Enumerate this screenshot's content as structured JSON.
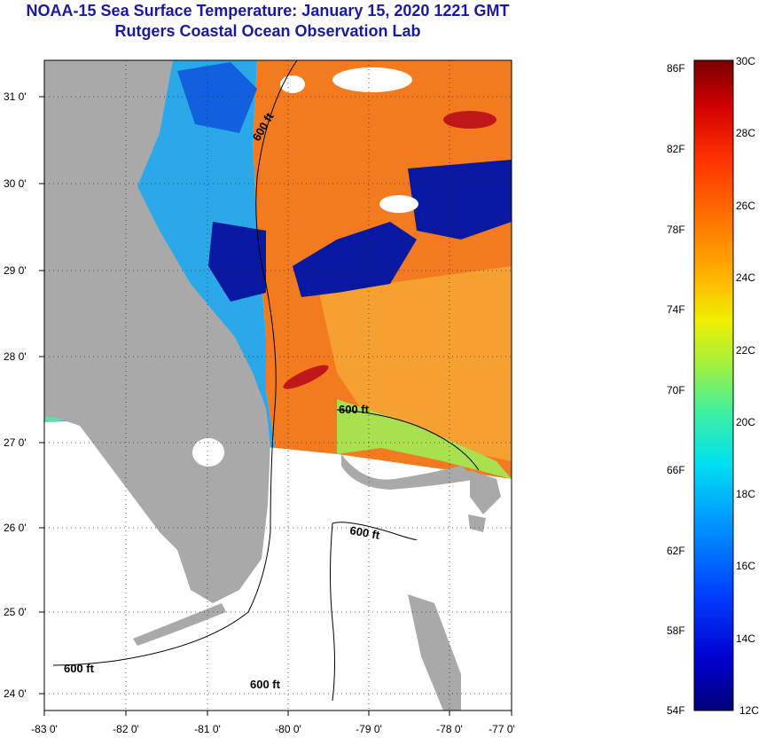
{
  "title": {
    "line1": "NOAA-15 Sea Surface Temperature:  January 15, 2020 1221 GMT",
    "line2": "Rutgers Coastal Ocean Observation Lab"
  },
  "axes": {
    "lat_labels": [
      "31 0'",
      "30 0'",
      "29 0'",
      "28 0'",
      "27 0'",
      "26 0'",
      "25 0'",
      "24 0'"
    ],
    "lon_labels": [
      "-83 0'",
      "-82 0'",
      "-81 0'",
      "-80 0'",
      "-79 0'",
      "-78 0'",
      "-77 0'"
    ]
  },
  "contours": {
    "label": "600 ft",
    "depth_ft": 600
  },
  "colorbar": {
    "fahrenheit": [
      "86F",
      "82F",
      "78F",
      "74F",
      "70F",
      "66F",
      "62F",
      "58F",
      "54F"
    ],
    "celsius": [
      "30C",
      "28C",
      "26C",
      "24C",
      "22C",
      "20C",
      "18C",
      "16C",
      "14C",
      "12C"
    ],
    "range_c": [
      12,
      30
    ],
    "range_f": [
      54,
      86
    ],
    "colors": [
      "#00007a",
      "#0000d0",
      "#0040ff",
      "#00a0ff",
      "#00e0f0",
      "#40f0a0",
      "#a0f040",
      "#f0f000",
      "#ffb000",
      "#ff7000",
      "#ff3000",
      "#d00000",
      "#7a0000"
    ]
  },
  "map_colors": {
    "land": "#a9a9a9",
    "no_data": "#ffffff",
    "cloud": "#ffffff",
    "warm": "#f47a20",
    "warm_light": "#f5a030",
    "cold": "#0818a0",
    "cool": "#2aa8e8",
    "green": "#a8e050"
  }
}
